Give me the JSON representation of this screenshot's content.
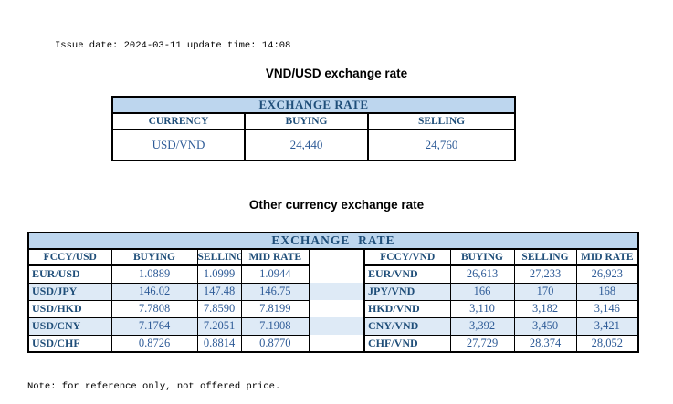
{
  "meta": {
    "issue_line": "Issue date: 2024-03-11 update time: 14:08",
    "note_line": "Note: for reference only, not offered price."
  },
  "vnd_usd_section": {
    "title": "VND/USD exchange rate",
    "table": {
      "header": "EXCHANGE RATE",
      "columns": [
        "CURRENCY",
        "BUYING",
        "SELLING"
      ],
      "rows": [
        [
          "USD/VND",
          "24,440",
          "24,760"
        ]
      ]
    }
  },
  "other_section": {
    "title": "Other currency exchange rate",
    "table": {
      "header": "EXCHANGE  RATE",
      "left": {
        "columns": [
          "FCCY/USD",
          "BUYING",
          "SELLING",
          "MID RATE"
        ],
        "rows": [
          [
            "EUR/USD",
            "1.0889",
            "1.0999",
            "1.0944"
          ],
          [
            "USD/JPY",
            "146.02",
            "147.48",
            "146.75"
          ],
          [
            "USD/HKD",
            "7.7808",
            "7.8590",
            "7.8199"
          ],
          [
            "USD/CNY",
            "7.1764",
            "7.2051",
            "7.1908"
          ],
          [
            "USD/CHF",
            "0.8726",
            "0.8814",
            "0.8770"
          ]
        ]
      },
      "right": {
        "columns": [
          "FCCY/VND",
          "BUYING",
          "SELLING",
          "MID RATE"
        ],
        "rows": [
          [
            "EUR/VND",
            "26,613",
            "27,233",
            "26,923"
          ],
          [
            "JPY/VND",
            "166",
            "170",
            "168"
          ],
          [
            "HKD/VND",
            "3,110",
            "3,182",
            "3,146"
          ],
          [
            "CNY/VND",
            "3,392",
            "3,450",
            "3,421"
          ],
          [
            "CHF/VND",
            "27,729",
            "28,374",
            "28,052"
          ]
        ]
      }
    }
  },
  "colors": {
    "header_bg": "#BDD6EE",
    "stripe_bg": "#DEEAF6",
    "heading_text": "#1F4E79",
    "value_text": "#2E5B97",
    "border": "#000000"
  }
}
